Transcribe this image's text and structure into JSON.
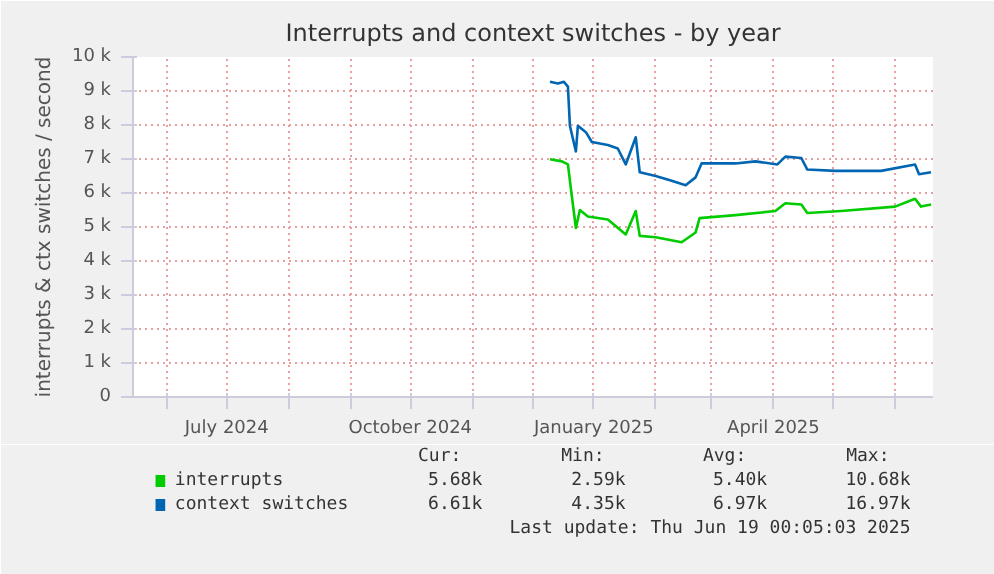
{
  "chart_data": {
    "type": "line",
    "title": "Interrupts and context switches - by year",
    "ylabel": "interrupts & ctx switches / second",
    "xlim": [
      "2024-05-15",
      "2025-06-20"
    ],
    "xticks": [
      {
        "value": "2024-06-01",
        "label": null
      },
      {
        "value": "2024-07-01",
        "label": "July 2024"
      },
      {
        "value": "2024-08-01",
        "label": null
      },
      {
        "value": "2024-09-01",
        "label": null
      },
      {
        "value": "2024-10-01",
        "label": "October 2024"
      },
      {
        "value": "2024-11-01",
        "label": null
      },
      {
        "value": "2024-12-01",
        "label": null
      },
      {
        "value": "2025-01-01",
        "label": "January 2025"
      },
      {
        "value": "2025-02-01",
        "label": null
      },
      {
        "value": "2025-03-01",
        "label": null
      },
      {
        "value": "2025-04-01",
        "label": "April 2025"
      },
      {
        "value": "2025-05-01",
        "label": null
      },
      {
        "value": "2025-06-01",
        "label": null
      }
    ],
    "ylim": [
      0,
      10000
    ],
    "yticks": [
      {
        "value": 0,
        "label": "0"
      },
      {
        "value": 1000,
        "label": "1 k"
      },
      {
        "value": 2000,
        "label": "2 k"
      },
      {
        "value": 3000,
        "label": "3 k"
      },
      {
        "value": 4000,
        "label": "4 k"
      },
      {
        "value": 5000,
        "label": "5 k"
      },
      {
        "value": 6000,
        "label": "6 k"
      },
      {
        "value": 7000,
        "label": "7 k"
      },
      {
        "value": 8000,
        "label": "8 k"
      },
      {
        "value": 9000,
        "label": "9 k"
      },
      {
        "value": 10000,
        "label": "10 k"
      }
    ],
    "grid": true,
    "legend": "bottom",
    "marker": "none",
    "line_style": "solid",
    "series": [
      {
        "name": "interrupts",
        "color": "#00cc00",
        "x": [
          "2024-12-10",
          "2024-12-16",
          "2024-12-19",
          "2024-12-21",
          "2024-12-23",
          "2024-12-25",
          "2024-12-29",
          "2025-01-08",
          "2025-01-17",
          "2025-01-22",
          "2025-01-24",
          "2025-02-01",
          "2025-02-14",
          "2025-02-21",
          "2025-02-23",
          "2025-03-13",
          "2025-04-02",
          "2025-04-07",
          "2025-04-15",
          "2025-04-18",
          "2025-05-05",
          "2025-06-01",
          "2025-06-11",
          "2025-06-14",
          "2025-06-19"
        ],
        "values": [
          6990,
          6930,
          6840,
          5890,
          4970,
          5500,
          5310,
          5220,
          4780,
          5470,
          4740,
          4700,
          4550,
          4840,
          5260,
          5350,
          5470,
          5700,
          5660,
          5410,
          5470,
          5600,
          5830,
          5600,
          5660
        ]
      },
      {
        "name": "context switches",
        "color": "#0066b3",
        "x": [
          "2024-12-10",
          "2024-12-14",
          "2024-12-17",
          "2024-12-19",
          "2024-12-20",
          "2024-12-23",
          "2024-12-24",
          "2024-12-28",
          "2024-12-31",
          "2025-01-08",
          "2025-01-13",
          "2025-01-17",
          "2025-01-22",
          "2025-01-24",
          "2025-02-01",
          "2025-02-09",
          "2025-02-16",
          "2025-02-21",
          "2025-02-24",
          "2025-03-13",
          "2025-03-23",
          "2025-04-03",
          "2025-04-07",
          "2025-04-15",
          "2025-04-18",
          "2025-05-02",
          "2025-05-25",
          "2025-06-11",
          "2025-06-13",
          "2025-06-19"
        ],
        "values": [
          9270,
          9220,
          9270,
          9130,
          7980,
          7220,
          7980,
          7790,
          7500,
          7410,
          7310,
          6840,
          7640,
          6610,
          6500,
          6360,
          6230,
          6460,
          6870,
          6870,
          6930,
          6840,
          7070,
          7030,
          6690,
          6650,
          6650,
          6840,
          6550,
          6610
        ]
      }
    ],
    "annotations": [
      "Cur:",
      "Min:",
      "Avg:",
      "Max:",
      "5.68k",
      "2.59k",
      "5.40k",
      "10.68k",
      "6.61k",
      "4.35k",
      "6.97k",
      "16.97k",
      "Last update: Thu Jun 19 00:05:03 2025"
    ]
  }
}
